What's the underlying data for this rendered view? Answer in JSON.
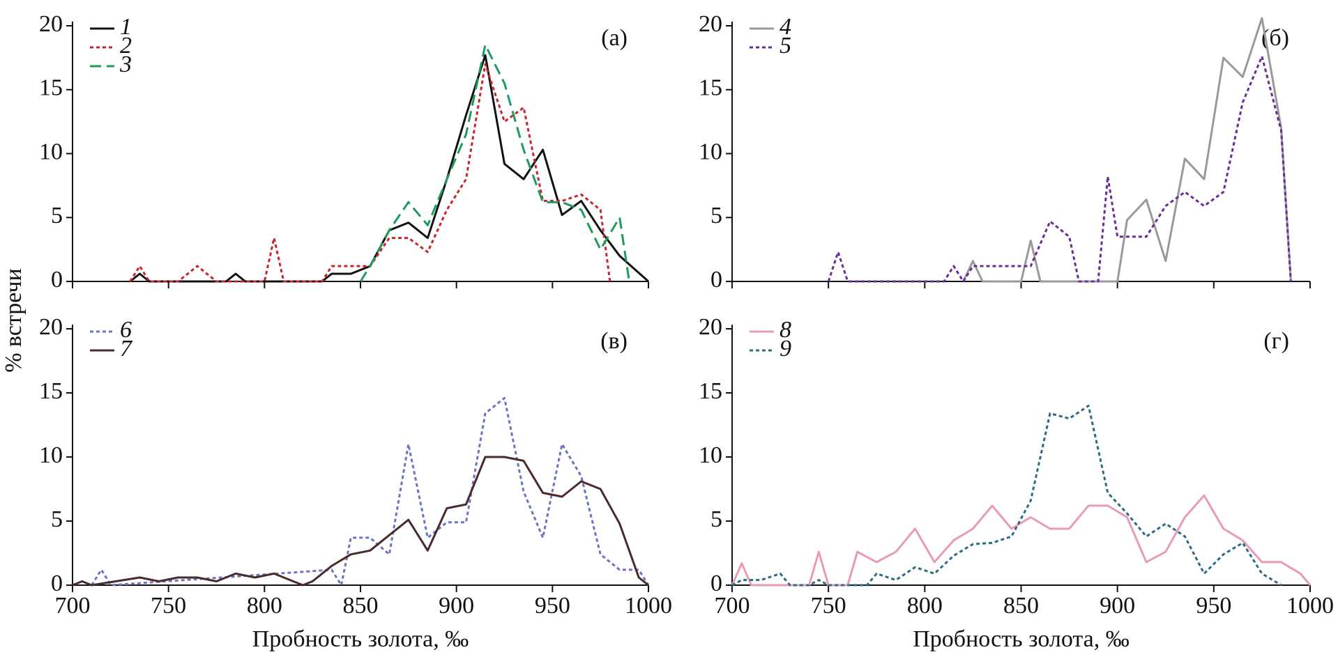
{
  "chart_data": [
    {
      "type": "line",
      "label": "(а)",
      "ylabel": "% встречи",
      "xlim": [
        700,
        1000
      ],
      "xticks": [
        700,
        750,
        800,
        850,
        900,
        950,
        1000
      ],
      "xtick_labels": false,
      "ylim": [
        0,
        20
      ],
      "yticks": [
        0,
        5,
        10,
        15,
        20
      ],
      "series": [
        {
          "name": "1",
          "color": "#111111",
          "style": "solid",
          "x": [
            730,
            735,
            740,
            780,
            785,
            790,
            830,
            835,
            845,
            855,
            865,
            875,
            885,
            895,
            905,
            915,
            925,
            935,
            945,
            955,
            965,
            975,
            985,
            1000
          ],
          "values": [
            0,
            0.6,
            0,
            0,
            0.6,
            0,
            0,
            0.6,
            0.6,
            1.2,
            4,
            4.6,
            3.4,
            8,
            13,
            17.7,
            9.2,
            8,
            10.3,
            5.2,
            6.3,
            4,
            2,
            0
          ]
        },
        {
          "name": "2",
          "color": "#c8262c",
          "style": "dotted",
          "x": [
            730,
            735,
            740,
            755,
            765,
            775,
            800,
            805,
            810,
            830,
            835,
            845,
            855,
            865,
            875,
            885,
            895,
            905,
            915,
            925,
            935,
            945,
            955,
            965,
            975,
            980
          ],
          "values": [
            0,
            1.2,
            0,
            0,
            1.2,
            0,
            0,
            3.4,
            0,
            0,
            1.2,
            1.2,
            1.2,
            3.4,
            3.4,
            2.3,
            5.6,
            8,
            17,
            12.5,
            13.6,
            6.3,
            6.3,
            6.8,
            5.6,
            0
          ]
        },
        {
          "name": "3",
          "color": "#1e9a5a",
          "style": "dashed",
          "x": [
            850,
            855,
            865,
            875,
            885,
            895,
            905,
            915,
            925,
            935,
            945,
            955,
            965,
            975,
            985,
            990
          ],
          "values": [
            0,
            1.2,
            4,
            6.2,
            4.4,
            8,
            11.5,
            18.5,
            15.5,
            10.3,
            6.2,
            6.2,
            5.6,
            2.5,
            5,
            0
          ]
        }
      ]
    },
    {
      "type": "line",
      "label": "(б)",
      "xlim": [
        700,
        1000
      ],
      "xticks": [
        700,
        750,
        800,
        850,
        900,
        950,
        1000
      ],
      "xtick_labels": false,
      "ylim": [
        0,
        20
      ],
      "yticks": [
        0,
        5,
        10,
        15,
        20
      ],
      "series": [
        {
          "name": "4",
          "color": "#999999",
          "style": "solid",
          "x": [
            820,
            825,
            830,
            850,
            855,
            860,
            900,
            905,
            915,
            925,
            935,
            945,
            955,
            965,
            975,
            985,
            990
          ],
          "values": [
            0,
            1.6,
            0,
            0,
            3.2,
            0,
            0,
            4.8,
            6.4,
            1.6,
            9.6,
            8,
            17.5,
            16,
            20.6,
            12,
            0
          ]
        },
        {
          "name": "5",
          "color": "#6a2a9a",
          "style": "dotted",
          "x": [
            750,
            755,
            760,
            810,
            815,
            820,
            825,
            835,
            845,
            855,
            865,
            875,
            880,
            890,
            895,
            900,
            905,
            915,
            925,
            935,
            945,
            955,
            965,
            975,
            985,
            990
          ],
          "values": [
            0,
            2.3,
            0,
            0,
            1.2,
            0,
            1.2,
            1.2,
            1.2,
            1.2,
            4.7,
            3.5,
            0,
            0,
            8.2,
            3.5,
            3.5,
            3.5,
            5.9,
            7,
            5.9,
            7,
            14,
            17.6,
            11.8,
            0
          ]
        }
      ]
    },
    {
      "type": "line",
      "label": "(в)",
      "xlabel": "Пробность золота, ‰",
      "xlim": [
        700,
        1000
      ],
      "xticks": [
        700,
        750,
        800,
        850,
        900,
        950,
        1000
      ],
      "ylim": [
        0,
        20
      ],
      "yticks": [
        0,
        5,
        10,
        15,
        20
      ],
      "series": [
        {
          "name": "6",
          "color": "#6b74c4",
          "style": "dotted",
          "x": [
            710,
            715,
            720,
            835,
            840,
            845,
            855,
            865,
            875,
            885,
            895,
            905,
            915,
            925,
            935,
            945,
            955,
            965,
            975,
            985,
            995,
            1000
          ],
          "values": [
            0,
            1.2,
            0,
            1.2,
            0,
            3.7,
            3.7,
            2.4,
            11,
            3.7,
            4.9,
            4.9,
            13.4,
            14.6,
            7.3,
            3.7,
            11,
            8.5,
            2.4,
            1.2,
            1.2,
            0
          ]
        },
        {
          "name": "7",
          "color": "#4a2a2a",
          "style": "solid",
          "x": [
            700,
            705,
            710,
            735,
            745,
            755,
            765,
            775,
            785,
            795,
            805,
            815,
            820,
            825,
            835,
            845,
            855,
            865,
            875,
            885,
            895,
            905,
            915,
            925,
            935,
            945,
            955,
            965,
            975,
            985,
            995,
            1000
          ],
          "values": [
            0,
            0.3,
            0,
            0.6,
            0.3,
            0.6,
            0.6,
            0.3,
            0.9,
            0.6,
            0.9,
            0.3,
            0,
            0.3,
            1.5,
            2.4,
            2.7,
            3.9,
            5.1,
            2.7,
            6,
            6.3,
            10,
            10,
            9.7,
            7.2,
            6.9,
            8.1,
            7.5,
            4.8,
            0.6,
            0
          ]
        }
      ]
    },
    {
      "type": "line",
      "label": "(г)",
      "xlabel": "Пробность золота, ‰",
      "xlim": [
        700,
        1000
      ],
      "xticks": [
        700,
        750,
        800,
        850,
        900,
        950,
        1000
      ],
      "ylim": [
        0,
        20
      ],
      "yticks": [
        0,
        5,
        10,
        15,
        20
      ],
      "series": [
        {
          "name": "8",
          "color": "#e89ab8",
          "style": "solid",
          "x": [
            700,
            705,
            710,
            740,
            745,
            750,
            760,
            765,
            775,
            785,
            795,
            805,
            815,
            825,
            835,
            845,
            855,
            865,
            875,
            885,
            895,
            905,
            915,
            925,
            935,
            945,
            955,
            965,
            975,
            985,
            995,
            1000
          ],
          "values": [
            0,
            1.7,
            0,
            0,
            2.6,
            0,
            0,
            2.6,
            1.8,
            2.6,
            4.4,
            1.8,
            3.5,
            4.4,
            6.2,
            4.4,
            5.3,
            4.4,
            4.4,
            6.2,
            6.2,
            5.3,
            1.8,
            2.6,
            5.3,
            7,
            4.4,
            3.5,
            1.8,
            1.8,
            0.9,
            0
          ]
        },
        {
          "name": "9",
          "color": "#2a6a84",
          "style": "dotted",
          "x": [
            700,
            705,
            715,
            725,
            730,
            740,
            745,
            750,
            770,
            775,
            785,
            795,
            805,
            815,
            825,
            835,
            845,
            855,
            865,
            875,
            885,
            895,
            905,
            915,
            925,
            935,
            945,
            955,
            965,
            975,
            985
          ],
          "values": [
            0,
            0.4,
            0.4,
            0.9,
            0,
            0,
            0.4,
            0,
            0,
            0.9,
            0.4,
            1.4,
            0.9,
            2.3,
            3.2,
            3.3,
            3.8,
            6.6,
            13.4,
            13,
            14,
            7.2,
            5.6,
            3.8,
            4.8,
            3.8,
            0.9,
            2.4,
            3.3,
            0.9,
            0
          ]
        }
      ]
    }
  ]
}
